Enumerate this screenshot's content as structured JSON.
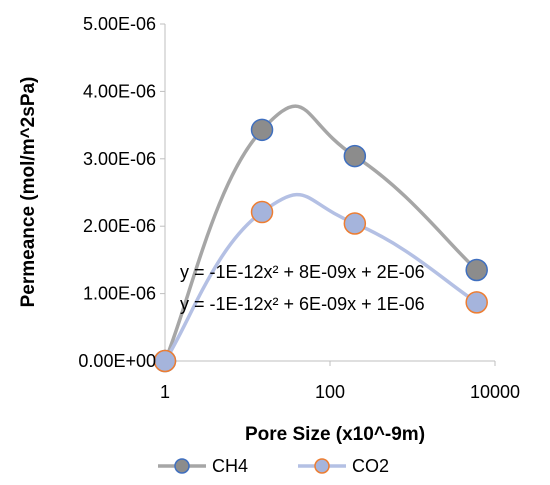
{
  "chart_data": {
    "type": "scatter",
    "title": "",
    "xlabel": "Pore Size (x10^-9m)",
    "ylabel": "Permeance (mol/m^2sPa)",
    "x_scale": "log",
    "xlim": [
      1,
      10000
    ],
    "ylim": [
      0,
      5e-06
    ],
    "x_ticks": [
      1,
      100,
      10000
    ],
    "x_tick_labels": [
      "1",
      "100",
      "10000"
    ],
    "y_ticks": [
      0,
      1e-06,
      2e-06,
      3e-06,
      4e-06,
      5e-06
    ],
    "y_tick_labels": [
      "0.00E+00",
      "1.00E-06",
      "2.00E-06",
      "3.00E-06",
      "4.00E-06",
      "5.00E-06"
    ],
    "grid": false,
    "legend_position": "bottom",
    "series": [
      {
        "name": "CH4",
        "x": [
          1,
          15,
          200,
          6000
        ],
        "y": [
          0,
          3.43e-06,
          3.04e-06,
          1.35e-06
        ],
        "marker_color": "#8c8c8c",
        "marker_edge": "#3f6fbf",
        "line_color": "#a6a6a6",
        "trendline_equation": "y = -1E-12x² + 8E-09x + 2E-06"
      },
      {
        "name": "CO2",
        "x": [
          1,
          15,
          200,
          6000
        ],
        "y": [
          0,
          2.21e-06,
          2.04e-06,
          8.7e-07
        ],
        "marker_color": "#a5b4dc",
        "marker_edge": "#ed7d31",
        "line_color": "#b4c0e4",
        "trendline_equation": "y = -1E-12x² + 6E-09x + 1E-06"
      }
    ]
  }
}
